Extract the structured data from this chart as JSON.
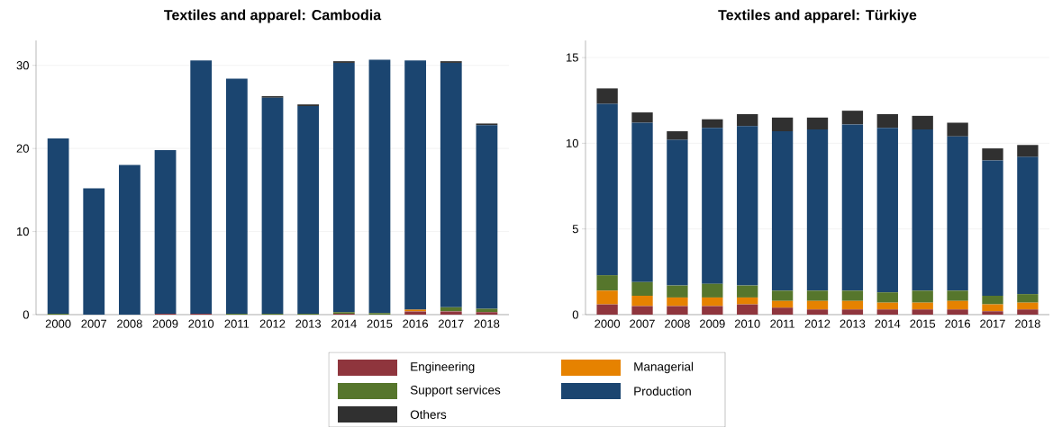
{
  "chart_data": [
    {
      "type": "bar",
      "stacked": true,
      "title": "Textiles and apparel: Cambodia",
      "categories": [
        "2000",
        "2007",
        "2008",
        "2009",
        "2010",
        "2011",
        "2012",
        "2013",
        "2014",
        "2015",
        "2016",
        "2017",
        "2018"
      ],
      "series": [
        {
          "color": "#8f353d",
          "values": [
            0,
            0,
            0,
            0.1,
            0.1,
            0,
            0,
            0,
            0.1,
            0,
            0.4,
            0.4,
            0.3
          ]
        },
        {
          "color": "#e68200",
          "values": [
            0,
            0,
            0,
            0,
            0,
            0,
            0,
            0,
            0,
            0,
            0.2,
            0,
            0
          ]
        },
        {
          "color": "#56762c",
          "values": [
            0.1,
            0,
            0,
            0,
            0,
            0.1,
            0.1,
            0.1,
            0.2,
            0.2,
            0,
            0.5,
            0.4
          ]
        },
        {
          "color": "#1b4570",
          "values": [
            21.1,
            15.2,
            18,
            19.7,
            30.5,
            28.3,
            26,
            25,
            30,
            30.5,
            30,
            29.4,
            22.1
          ]
        },
        {
          "color": "#303030",
          "values": [
            0,
            0,
            0,
            0,
            0,
            0,
            0.2,
            0.2,
            0.2,
            0,
            0,
            0.2,
            0.2
          ]
        }
      ],
      "ylim": [
        0,
        33
      ],
      "yticks": [
        0,
        10,
        20,
        30
      ],
      "grid": "y"
    },
    {
      "type": "bar",
      "stacked": true,
      "title": "Textiles and apparel: Türkiye",
      "categories": [
        "2000",
        "2007",
        "2008",
        "2009",
        "2010",
        "2011",
        "2012",
        "2013",
        "2014",
        "2015",
        "2016",
        "2017",
        "2018"
      ],
      "series": [
        {
          "name": "Engineering",
          "color": "#8f353d",
          "values": [
            0.6,
            0.5,
            0.5,
            0.5,
            0.6,
            0.4,
            0.3,
            0.3,
            0.3,
            0.3,
            0.3,
            0.2,
            0.3
          ]
        },
        {
          "name": "Managerial",
          "color": "#e68200",
          "values": [
            0.8,
            0.6,
            0.5,
            0.5,
            0.4,
            0.4,
            0.5,
            0.5,
            0.4,
            0.4,
            0.5,
            0.4,
            0.4
          ]
        },
        {
          "name": "Support services",
          "color": "#56762c",
          "values": [
            0.9,
            0.8,
            0.7,
            0.8,
            0.7,
            0.6,
            0.6,
            0.6,
            0.6,
            0.7,
            0.6,
            0.5,
            0.5
          ]
        },
        {
          "name": "Production",
          "color": "#1b4570",
          "values": [
            10,
            9.3,
            8.5,
            9.1,
            9.3,
            9.3,
            9.4,
            9.7,
            9.6,
            9.4,
            9,
            7.9,
            8
          ]
        },
        {
          "name": "Others",
          "color": "#303030",
          "values": [
            0.9,
            0.6,
            0.5,
            0.5,
            0.7,
            0.8,
            0.7,
            0.8,
            0.8,
            0.8,
            0.8,
            0.7,
            0.7
          ]
        }
      ],
      "ylim": [
        0,
        16
      ],
      "yticks": [
        0,
        5,
        10,
        15
      ],
      "grid": "y",
      "legend": "bottom"
    }
  ]
}
